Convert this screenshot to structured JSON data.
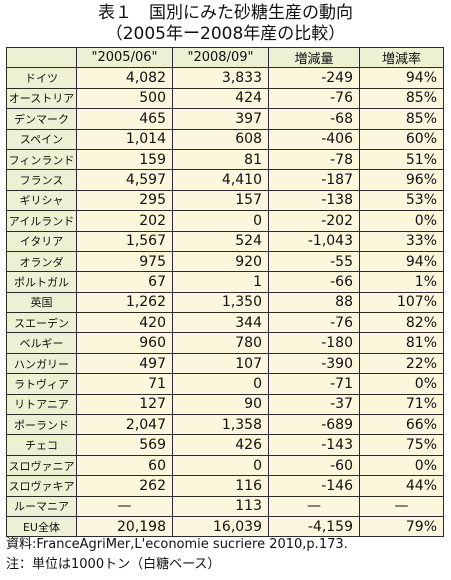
{
  "title": {
    "line1": "表１　国別にみた砂糖生産の動向",
    "line2": "（2005年ー2008年産の比較）"
  },
  "table": {
    "headers": [
      "",
      "\"2005/06\"",
      "\"2008/09\"",
      "増減量",
      "増減率"
    ],
    "rows": [
      {
        "country": "ドイツ",
        "v2005": "4,082",
        "v2008": "3,833",
        "change": "-249",
        "rate": "94%"
      },
      {
        "country": "オーストリア",
        "v2005": "500",
        "v2008": "424",
        "change": "-76",
        "rate": "85%"
      },
      {
        "country": "デンマーク",
        "v2005": "465",
        "v2008": "397",
        "change": "-68",
        "rate": "85%"
      },
      {
        "country": "スペイン",
        "v2005": "1,014",
        "v2008": "608",
        "change": "-406",
        "rate": "60%"
      },
      {
        "country": "フィンランド",
        "v2005": "159",
        "v2008": "81",
        "change": "-78",
        "rate": "51%"
      },
      {
        "country": "フランス",
        "v2005": "4,597",
        "v2008": "4,410",
        "change": "-187",
        "rate": "96%"
      },
      {
        "country": "ギリシャ",
        "v2005": "295",
        "v2008": "157",
        "change": "-138",
        "rate": "53%"
      },
      {
        "country": "アイルランド",
        "v2005": "202",
        "v2008": "0",
        "change": "-202",
        "rate": "0%"
      },
      {
        "country": "イタリア",
        "v2005": "1,567",
        "v2008": "524",
        "change": "-1,043",
        "rate": "33%"
      },
      {
        "country": "オランダ",
        "v2005": "975",
        "v2008": "920",
        "change": "-55",
        "rate": "94%"
      },
      {
        "country": "ポルトガル",
        "v2005": "67",
        "v2008": "1",
        "change": "-66",
        "rate": "1%"
      },
      {
        "country": "英国",
        "v2005": "1,262",
        "v2008": "1,350",
        "change": "88",
        "rate": "107%"
      },
      {
        "country": "スエーデン",
        "v2005": "420",
        "v2008": "344",
        "change": "-76",
        "rate": "82%"
      },
      {
        "country": "ベルギー",
        "v2005": "960",
        "v2008": "780",
        "change": "-180",
        "rate": "81%"
      },
      {
        "country": "ハンガリー",
        "v2005": "497",
        "v2008": "107",
        "change": "-390",
        "rate": "22%"
      },
      {
        "country": "ラトヴィア",
        "v2005": "71",
        "v2008": "0",
        "change": "-71",
        "rate": "0%"
      },
      {
        "country": "リトアニア",
        "v2005": "127",
        "v2008": "90",
        "change": "-37",
        "rate": "71%"
      },
      {
        "country": "ポーランド",
        "v2005": "2,047",
        "v2008": "1,358",
        "change": "-689",
        "rate": "66%"
      },
      {
        "country": "チェコ",
        "v2005": "569",
        "v2008": "426",
        "change": "-143",
        "rate": "75%"
      },
      {
        "country": "スロヴァニア",
        "v2005": "60",
        "v2008": "0",
        "change": "-60",
        "rate": "0%"
      },
      {
        "country": "スロヴァキア",
        "v2005": "262",
        "v2008": "116",
        "change": "-146",
        "rate": "44%"
      },
      {
        "country": "ルーマニア",
        "v2005": "—",
        "v2008": "113",
        "change": "—",
        "rate": "—"
      },
      {
        "country": "EU全体",
        "v2005": "20,198",
        "v2008": "16,039",
        "change": "-4,159",
        "rate": "79%"
      }
    ]
  },
  "notes": {
    "source": "資料:FranceAgriMer,L'economie sucriere 2010,p.173.",
    "unit": "注：単位は1000トン（白糖ベース）"
  },
  "colors": {
    "header_bg": "#eef0d4",
    "cell_bg": "#fbf6dc",
    "border": "#2b2b2b"
  }
}
